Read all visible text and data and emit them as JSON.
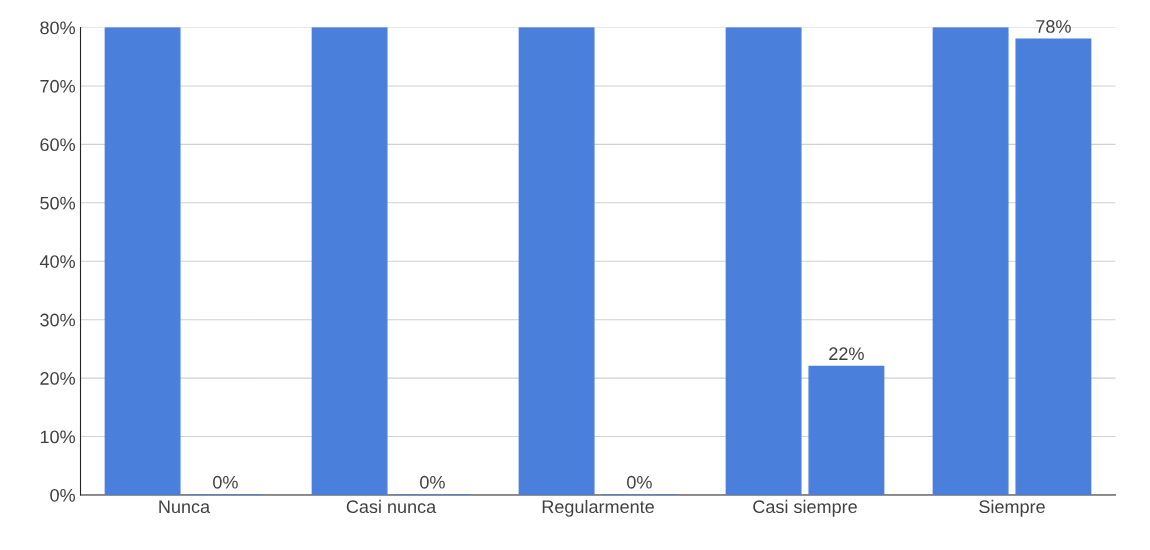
{
  "chart_data": {
    "type": "bar",
    "categories": [
      "Nunca",
      "Casi nunca",
      "Regularmente",
      "Casi siempre",
      "Siempre"
    ],
    "series": [
      {
        "color": "#4a7fdb",
        "values": [
          80,
          80,
          80,
          80,
          80
        ]
      },
      {
        "color": "#4a7fdb",
        "values": [
          0,
          0,
          0,
          22,
          78
        ],
        "value_labels": [
          "0%",
          "0%",
          "0%",
          "22%",
          "78%"
        ]
      }
    ],
    "ylim": [
      0,
      80
    ],
    "yticks": [
      {
        "value": 0,
        "label": "0%"
      },
      {
        "value": 10,
        "label": "10%"
      },
      {
        "value": 20,
        "label": "20%"
      },
      {
        "value": 30,
        "label": "30%"
      },
      {
        "value": 40,
        "label": "40%"
      },
      {
        "value": 50,
        "label": "50%"
      },
      {
        "value": 60,
        "label": "60%"
      },
      {
        "value": 70,
        "label": "70%"
      },
      {
        "value": 80,
        "label": "80%"
      }
    ],
    "grid": "y"
  }
}
